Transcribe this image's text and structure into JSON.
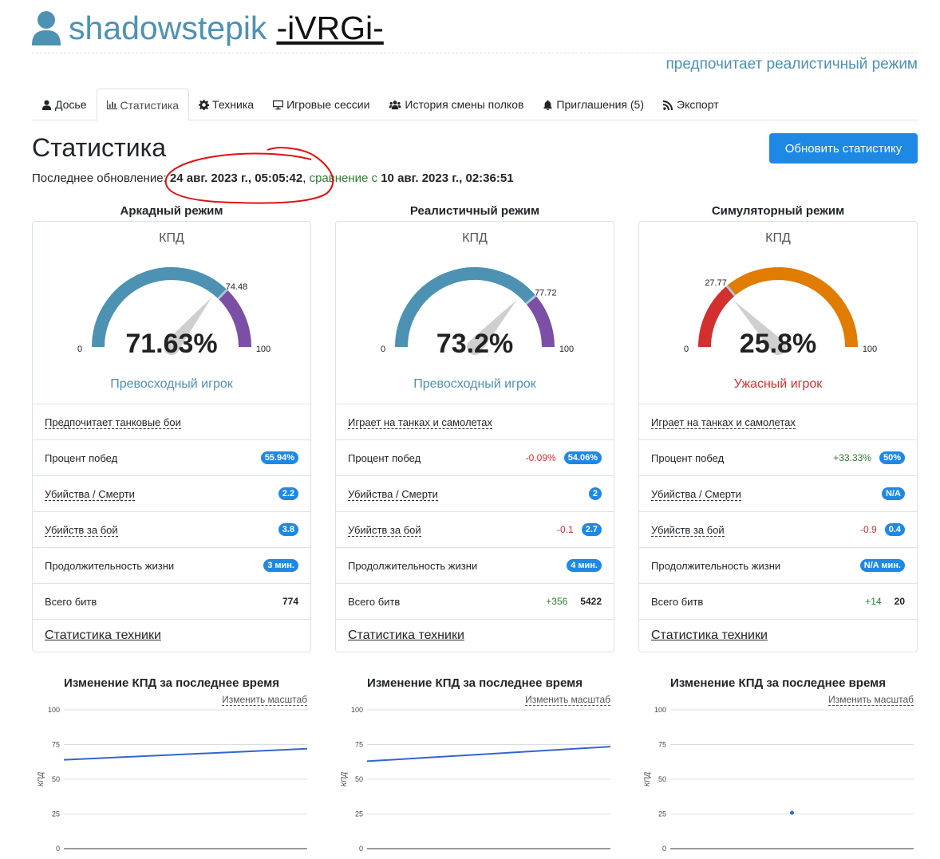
{
  "header": {
    "username": "shadowstepik",
    "clan": "-iVRGi-",
    "preference": "предпочитает реалистичный режим"
  },
  "tabs": [
    {
      "label": "Досье",
      "icon": "user-icon"
    },
    {
      "label": "Статистика",
      "icon": "chart-bar-icon",
      "active": true
    },
    {
      "label": "Техника",
      "icon": "gear-icon"
    },
    {
      "label": "Игровые сессии",
      "icon": "desktop-icon"
    },
    {
      "label": "История смены полков",
      "icon": "users-icon"
    },
    {
      "label": "Приглашения (5)",
      "icon": "bell-icon"
    },
    {
      "label": "Экспорт",
      "icon": "rss-icon"
    }
  ],
  "page": {
    "title": "Статистика",
    "refresh_label": "Обновить статистику",
    "last_update_prefix": "Последнее обновление: ",
    "last_update_date": "24 авг. 2023 г., 05:05:42",
    "comparison_prefix": ", ",
    "comparison_label": "сравнение",
    "comparison_with": " с ",
    "comparison_date": "10 авг. 2023 г., 02:36:51"
  },
  "colors": {
    "accent": "#1e88e5",
    "good": "#4d91b3",
    "purple": "#7b4fa6",
    "bad": "#d32f2f",
    "orange": "#e07c00"
  },
  "modes": [
    {
      "title": "Аркадный режим",
      "kpd_label": "КПД",
      "value": 71.63,
      "value_text": "71.63%",
      "threshold": 74.48,
      "threshold_text": "74.48",
      "min_text": "0",
      "max_text": "100",
      "rating": "Превосходный игрок",
      "rating_color": "#4d91b3",
      "arc_low_color": "#4d91b3",
      "arc_high_color": "#7b4fa6",
      "preference": "Предпочитает танковые бои",
      "stats": [
        {
          "label": "Процент побед",
          "value": "55.94%",
          "delta": "",
          "badge": true,
          "dotted": false
        },
        {
          "label": "Убийства / Смерти",
          "value": "2.2",
          "delta": "",
          "badge": true,
          "dotted": true
        },
        {
          "label": "Убийств за бой",
          "value": "3.8",
          "delta": "",
          "badge": true,
          "dotted": true
        },
        {
          "label": "Продолжительность жизни",
          "value": "3 мин.",
          "delta": "",
          "badge": true,
          "dotted": false
        },
        {
          "label": "Всего битв",
          "value": "774",
          "delta": "",
          "badge": false,
          "dotted": false
        }
      ],
      "tech_link": "Статистика техники",
      "chart_title": "Изменение КПД за последнее время",
      "scale_link": "Изменить масштаб"
    },
    {
      "title": "Реалистичный режим",
      "kpd_label": "КПД",
      "value": 73.2,
      "value_text": "73.2%",
      "threshold": 77.72,
      "threshold_text": "77.72",
      "min_text": "0",
      "max_text": "100",
      "rating": "Превосходный игрок",
      "rating_color": "#4d91b3",
      "arc_low_color": "#4d91b3",
      "arc_high_color": "#7b4fa6",
      "preference": "Играет на танках и самолетах",
      "stats": [
        {
          "label": "Процент побед",
          "value": "54.06%",
          "delta": "-0.09%",
          "delta_sign": "neg",
          "badge": true,
          "dotted": false
        },
        {
          "label": "Убийства / Смерти",
          "value": "2",
          "delta": "",
          "badge": true,
          "dotted": true
        },
        {
          "label": "Убийств за бой",
          "value": "2.7",
          "delta": "-0.1",
          "delta_sign": "neg",
          "badge": true,
          "dotted": true
        },
        {
          "label": "Продолжительность жизни",
          "value": "4 мин.",
          "delta": "",
          "badge": true,
          "dotted": false
        },
        {
          "label": "Всего битв",
          "value": "5422",
          "delta": "+356",
          "delta_sign": "pos",
          "badge": false,
          "dotted": false
        }
      ],
      "tech_link": "Статистика техники",
      "chart_title": "Изменение КПД за последнее время",
      "scale_link": "Изменить масштаб"
    },
    {
      "title": "Симуляторный режим",
      "kpd_label": "КПД",
      "value": 25.8,
      "value_text": "25.8%",
      "threshold": 27.77,
      "threshold_text": "27.77",
      "min_text": "0",
      "max_text": "100",
      "rating": "Ужасный игрок",
      "rating_color": "#d32f2f",
      "arc_low_color": "#d32f2f",
      "arc_high_color": "#e07c00",
      "preference": "Играет на танках и самолетах",
      "stats": [
        {
          "label": "Процент побед",
          "value": "50%",
          "delta": "+33.33%",
          "delta_sign": "pos",
          "badge": true,
          "dotted": false
        },
        {
          "label": "Убийства / Смерти",
          "value": "N/A",
          "delta": "",
          "badge": true,
          "dotted": true
        },
        {
          "label": "Убийств за бой",
          "value": "0.4",
          "delta": "-0.9",
          "delta_sign": "neg",
          "badge": true,
          "dotted": true
        },
        {
          "label": "Продолжительность жизни",
          "value": "N/A мин.",
          "delta": "",
          "badge": true,
          "dotted": false
        },
        {
          "label": "Всего битв",
          "value": "20",
          "delta": "+14",
          "delta_sign": "pos",
          "badge": false,
          "dotted": false
        }
      ],
      "tech_link": "Статистика техники",
      "chart_title": "Изменение КПД за последнее время",
      "scale_link": "Изменить масштаб"
    }
  ],
  "chart_data": [
    {
      "type": "line",
      "ylabel": "КПД",
      "ylim": [
        0,
        100
      ],
      "yticks": [
        "0",
        "25",
        "50",
        "75",
        "100"
      ],
      "series": [
        {
          "x": [
            0,
            1
          ],
          "values": [
            64,
            72
          ]
        }
      ]
    },
    {
      "type": "line",
      "ylabel": "КПД",
      "ylim": [
        0,
        100
      ],
      "yticks": [
        "0",
        "25",
        "50",
        "75",
        "100"
      ],
      "series": [
        {
          "x": [
            0,
            1
          ],
          "values": [
            63,
            73.5
          ]
        }
      ]
    },
    {
      "type": "scatter",
      "ylabel": "КПД",
      "ylim": [
        0,
        100
      ],
      "yticks": [
        "0",
        "25",
        "50",
        "75",
        "100"
      ],
      "series": [
        {
          "x": [
            0.5
          ],
          "values": [
            25.8
          ]
        }
      ]
    }
  ]
}
